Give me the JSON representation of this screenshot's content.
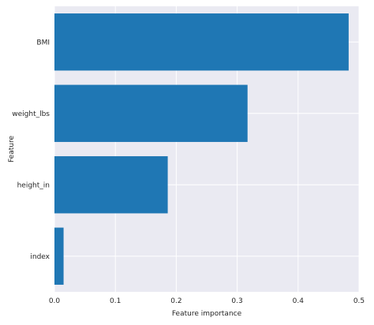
{
  "chart_data": {
    "type": "bar",
    "orientation": "horizontal",
    "categories": [
      "BMI",
      "weight_lbs",
      "height_in",
      "index"
    ],
    "values": [
      0.483,
      0.317,
      0.186,
      0.015
    ],
    "xlabel": "Feature importance",
    "ylabel": "Feature",
    "xlim": [
      0,
      0.5
    ],
    "xticks": [
      "0.0",
      "0.1",
      "0.2",
      "0.3",
      "0.4",
      "0.5"
    ],
    "grid": true,
    "colors": {
      "bar": "#1f77b4",
      "plot_background": "#eaeaf2",
      "grid": "#ffffff"
    }
  }
}
